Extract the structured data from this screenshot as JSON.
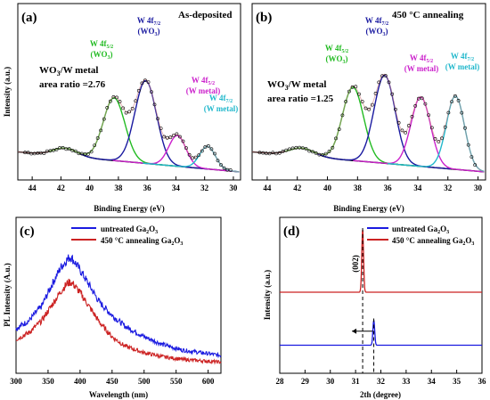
{
  "chart_data": [
    {
      "panel": "(a)",
      "type": "line",
      "subtitle": "As-deposited",
      "xlabel": "Binding Energy (eV)",
      "ylabel": "Intensity (a.u.)",
      "xlim": [
        45,
        29.5
      ],
      "xticks": [
        44,
        42,
        40,
        38,
        36,
        34,
        32,
        30
      ],
      "x_reversed": true,
      "annotation": [
        "WO",
        "3",
        "/W metal",
        "area ratio =2.76"
      ],
      "peaks": [
        {
          "label": [
            "W 4f",
            "5/2",
            "(WO",
            "3",
            ")"
          ],
          "center": 38.3,
          "height": 0.47,
          "width": 0.75,
          "color": "#22bb22"
        },
        {
          "label": [
            "W 4f",
            "7/2",
            "(WO",
            "3",
            ")"
          ],
          "center": 36.1,
          "height": 0.62,
          "width": 0.75,
          "color": "#1a1aa0"
        },
        {
          "label": [
            "W 4f",
            "5/2",
            "(W metal)"
          ],
          "center": 33.9,
          "height": 0.23,
          "width": 0.6,
          "color": "#cc22cc"
        },
        {
          "label": [
            "W 4f",
            "7/2",
            "(W metal)"
          ],
          "center": 31.8,
          "height": 0.17,
          "width": 0.55,
          "color": "#22b8cc"
        }
      ],
      "background": {
        "left": 0.03,
        "right": -0.12
      }
    },
    {
      "panel": "(b)",
      "type": "line",
      "subtitle": "450 °C annealing",
      "xlabel": "Binding Energy (eV)",
      "ylabel": "Intensity (a.u.)",
      "xlim": [
        45,
        29.5
      ],
      "xticks": [
        44,
        42,
        40,
        38,
        36,
        34,
        32,
        30
      ],
      "x_reversed": true,
      "annotation": [
        "WO",
        "3",
        "/W metal",
        "area ratio =1.25"
      ],
      "peaks": [
        {
          "label": [
            "W 4f",
            "5/2",
            "(WO",
            "3",
            ")"
          ],
          "center": 38.3,
          "height": 0.55,
          "width": 0.7,
          "color": "#22bb22"
        },
        {
          "label": [
            "W 4f",
            "7/2",
            "(WO",
            "3",
            ")"
          ],
          "center": 36.2,
          "height": 0.66,
          "width": 0.7,
          "color": "#1a1aa0"
        },
        {
          "label": [
            "W 4f",
            "5/2",
            "(W metal)"
          ],
          "center": 33.8,
          "height": 0.52,
          "width": 0.65,
          "color": "#cc22cc"
        },
        {
          "label": [
            "W 4f",
            "7/2",
            "(W metal)"
          ],
          "center": 31.5,
          "height": 0.55,
          "width": 0.6,
          "color": "#22b8cc"
        }
      ],
      "background": {
        "left": 0.03,
        "right": -0.12
      }
    },
    {
      "panel": "(c)",
      "type": "line",
      "xlabel": "Wavelength (nm)",
      "ylabel": "PL Intensity (A.u.)",
      "xlim": [
        300,
        620
      ],
      "xticks": [
        300,
        350,
        400,
        450,
        500,
        550,
        600
      ],
      "ylim": [
        0,
        1
      ],
      "series": [
        {
          "name": [
            "untreated Ga",
            "2",
            "O",
            "3"
          ],
          "color": "#1a1ae0",
          "x": [
            300,
            320,
            340,
            355,
            370,
            380,
            385,
            390,
            400,
            415,
            430,
            450,
            470,
            500,
            530,
            560,
            590,
            620
          ],
          "values": [
            0.28,
            0.34,
            0.45,
            0.6,
            0.74,
            0.8,
            0.82,
            0.79,
            0.72,
            0.6,
            0.48,
            0.38,
            0.3,
            0.22,
            0.16,
            0.12,
            0.1,
            0.08
          ]
        },
        {
          "name": [
            "450 °C annealing Ga",
            "2",
            "O",
            "3"
          ],
          "color": "#cc2222",
          "x": [
            300,
            320,
            340,
            355,
            370,
            380,
            385,
            390,
            400,
            415,
            430,
            450,
            470,
            500,
            530,
            560,
            590,
            620
          ],
          "values": [
            0.2,
            0.25,
            0.34,
            0.45,
            0.56,
            0.62,
            0.63,
            0.61,
            0.55,
            0.44,
            0.33,
            0.22,
            0.15,
            0.1,
            0.07,
            0.05,
            0.04,
            0.03
          ]
        }
      ]
    },
    {
      "panel": "(d)",
      "type": "line",
      "xlabel": "2th (degree)",
      "ylabel": "Intensity (a.u.)",
      "xlim": [
        28,
        36
      ],
      "xticks": [
        28,
        29,
        30,
        31,
        32,
        33,
        34,
        35,
        36
      ],
      "annotation": "(002)",
      "series": [
        {
          "name": [
            "untreated Ga",
            "2",
            "O",
            "3"
          ],
          "color": "#1a1ae0",
          "peak_x": 31.72,
          "baseline": 0.18,
          "peak_height": 0.16
        },
        {
          "name": [
            "450 °C annealing Ga",
            "2",
            "O",
            "3"
          ],
          "color": "#cc2222",
          "peak_x": 31.28,
          "baseline": 0.52,
          "peak_height": 0.4
        }
      ]
    }
  ]
}
